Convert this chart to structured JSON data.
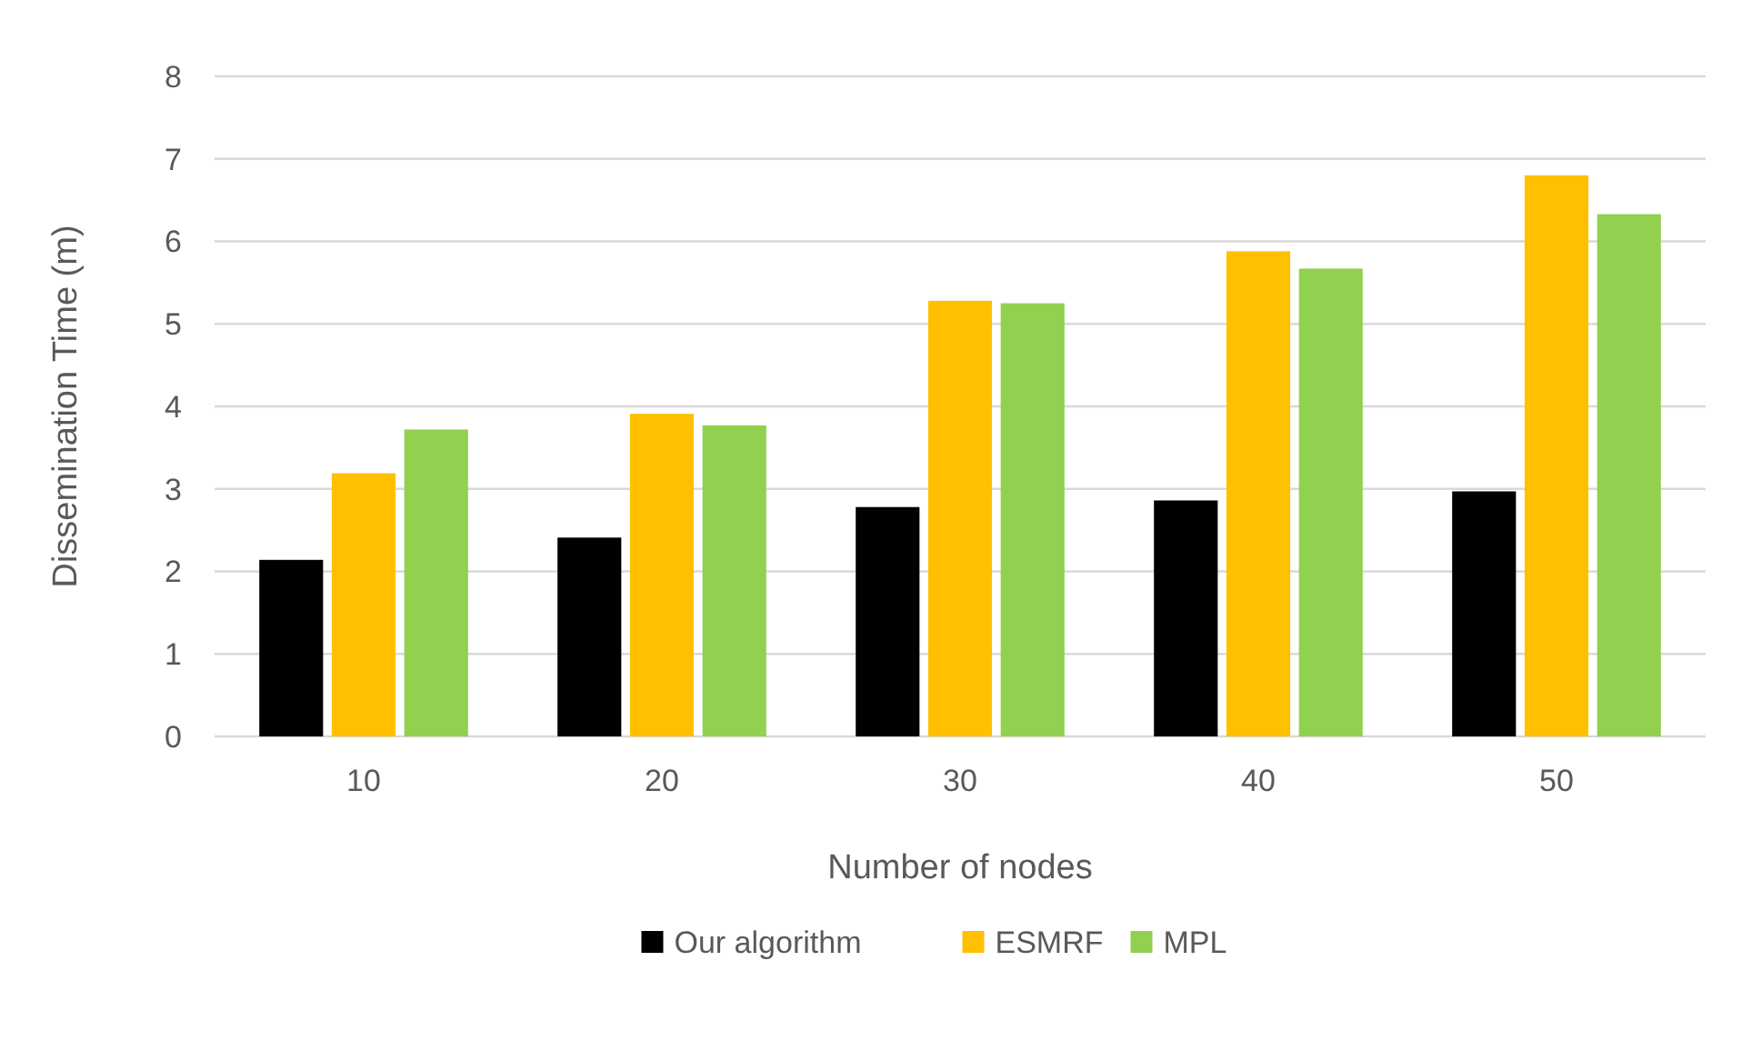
{
  "chart_data": {
    "type": "bar",
    "xlabel": "Number of nodes",
    "ylabel": "Dissemination Time (m)",
    "categories": [
      "10",
      "20",
      "30",
      "40",
      "50"
    ],
    "series": [
      {
        "name": "Our algorithm",
        "color": "#000000",
        "values": [
          2.14,
          2.41,
          2.78,
          2.86,
          2.97
        ]
      },
      {
        "name": "ESMRF",
        "color": "#ffc000",
        "values": [
          3.19,
          3.91,
          5.28,
          5.88,
          6.8
        ]
      },
      {
        "name": "MPL",
        "color": "#92d050",
        "values": [
          3.72,
          3.77,
          5.25,
          5.67,
          6.33
        ]
      }
    ],
    "ylim": [
      0,
      8
    ],
    "yticks": [
      0,
      1,
      2,
      3,
      4,
      5,
      6,
      7,
      8
    ],
    "grid": "y",
    "legend": "bottom"
  }
}
